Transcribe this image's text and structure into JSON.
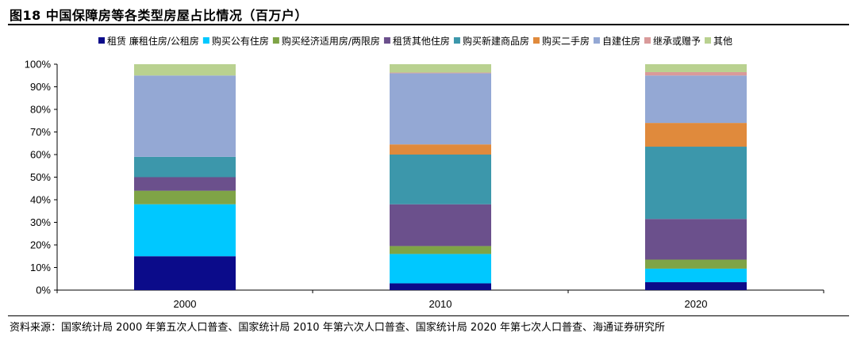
{
  "title": "图18 中国保障房等各类型房屋占比情况（百万户）",
  "source": "资料来源：国家统计局 2000 年第五次人口普查、国家统计局 2010 年第六次人口普查、国家统计局 2020 年第七次人口普查、海通证券研究所",
  "chart_data": {
    "type": "bar",
    "stacked": true,
    "percent": true,
    "title": "图18 中国保障房等各类型房屋占比情况（百万户）",
    "categories": [
      "2000",
      "2010",
      "2020"
    ],
    "ylim": [
      0,
      100
    ],
    "yticks": [
      "0%",
      "10%",
      "20%",
      "30%",
      "40%",
      "50%",
      "60%",
      "70%",
      "80%",
      "90%",
      "100%"
    ],
    "grid": false,
    "legend_position": "top",
    "series": [
      {
        "name": "租赁 廉租住房/公租房",
        "color": "#0b0b8a",
        "values": [
          15,
          3,
          3.5
        ]
      },
      {
        "name": "购买公有住房",
        "color": "#00c8ff",
        "values": [
          23,
          13,
          6
        ]
      },
      {
        "name": "购买经济适用房/两限房",
        "color": "#7fa446",
        "values": [
          6,
          3.5,
          4
        ]
      },
      {
        "name": "租赁其他住房",
        "color": "#6b508c",
        "values": [
          6,
          18.5,
          18
        ]
      },
      {
        "name": "购买新建商品房",
        "color": "#3c97ab",
        "values": [
          9,
          22,
          32
        ]
      },
      {
        "name": "购买二手房",
        "color": "#e08a3c",
        "values": [
          0,
          4.5,
          10.5
        ]
      },
      {
        "name": "自建住房",
        "color": "#94a8d4",
        "values": [
          36,
          31.5,
          21
        ]
      },
      {
        "name": "继承或赠予",
        "color": "#d99a9a",
        "values": [
          0,
          0.3,
          1.5
        ]
      },
      {
        "name": "其他",
        "color": "#b9d190",
        "values": [
          5,
          3.7,
          3.5
        ]
      }
    ]
  }
}
